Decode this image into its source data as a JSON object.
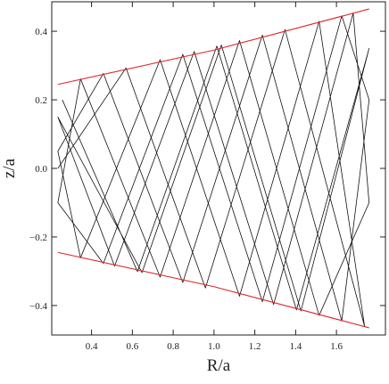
{
  "chart_data": {
    "type": "line",
    "x_label": "R/a",
    "y_label": "z/a",
    "xlim": [
      0.205,
      1.84
    ],
    "ylim": [
      -0.486,
      0.486
    ],
    "xticks": [
      0.4,
      0.6,
      0.8,
      {
        "value": 1.0,
        "label": "1.0"
      },
      1.2,
      1.4,
      1.6
    ],
    "yticks": [
      {
        "value": -0.4,
        "label": "−0.4"
      },
      {
        "value": -0.2,
        "label": "−0.2"
      },
      {
        "value": 0.0,
        "label": "0.0"
      },
      0.2,
      0.4
    ],
    "series": [
      {
        "color": "#111111",
        "width": 0.8,
        "x": [
          0.235,
          0.569,
          0.958,
          1.348,
          1.738,
          1.515,
          1.125,
          0.736,
          0.346,
          0.235,
          0.458,
          0.847,
          1.237,
          1.626,
          1.76,
          1.626,
          1.237,
          0.847,
          0.458,
          0.235,
          0.346,
          0.736,
          1.125,
          1.515,
          1.76,
          1.682,
          1.292,
          0.903,
          0.513,
          0.235,
          0.647,
          1.036,
          1.426,
          1.76,
          1.404,
          1.014,
          0.625,
          0.257
        ],
        "values": [
          0.0,
          0.293,
          -0.349,
          0.405,
          -0.461,
          0.429,
          -0.373,
          0.317,
          -0.261,
          0.05,
          0.277,
          -0.333,
          0.389,
          -0.445,
          0.2,
          0.445,
          -0.389,
          0.333,
          -0.277,
          -0.1,
          0.261,
          -0.317,
          0.373,
          -0.429,
          -0.1,
          0.453,
          -0.397,
          0.341,
          -0.285,
          0.15,
          -0.304,
          0.36,
          -0.416,
          0.35,
          -0.413,
          0.357,
          -0.301,
          0.2
        ]
      },
      {
        "color": "#e0262b",
        "width": 1.1,
        "x": [
          0.235,
          1.0,
          1.76
        ],
        "values": [
          0.245,
          0.345,
          0.465
        ]
      },
      {
        "color": "#e0262b",
        "width": 1.1,
        "x": [
          0.235,
          1.0,
          1.76
        ],
        "values": [
          -0.245,
          -0.345,
          -0.465
        ]
      }
    ]
  }
}
